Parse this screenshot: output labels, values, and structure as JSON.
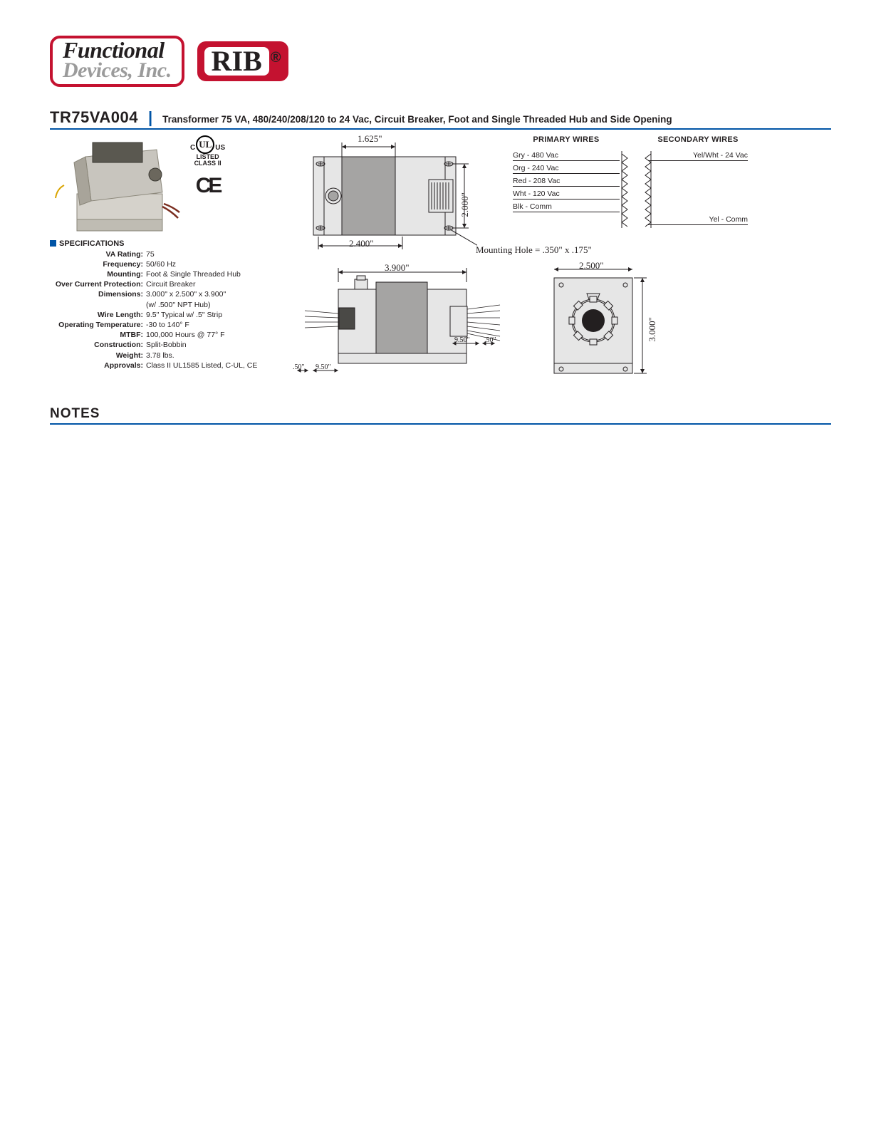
{
  "logos": {
    "fd_top": "Functional",
    "fd_bottom": "Devices, Inc.",
    "rib": "RIB",
    "reg": "®"
  },
  "header": {
    "part_number": "TR75VA004",
    "separator": "|",
    "description": "Transformer 75 VA, 480/240/208/120 to 24 Vac, Circuit Breaker, Foot and  Single Threaded Hub and Side Opening"
  },
  "certifications": {
    "ul_c": "C",
    "ul_text": "UL",
    "ul_us": "US",
    "ul_listed": "LISTED",
    "ul_class": "CLASS II",
    "ce": "CE"
  },
  "specs_heading": "SPECIFICATIONS",
  "specs": [
    {
      "label": "VA Rating:",
      "value": "75"
    },
    {
      "label": "Frequency:",
      "value": "50/60 Hz"
    },
    {
      "label": "Mounting:",
      "value": "Foot & Single Threaded Hub"
    },
    {
      "label": "Over Current Protection:",
      "value": "Circuit Breaker"
    },
    {
      "label": "Dimensions:",
      "value": "3.000\" x 2.500\" x 3.900\""
    },
    {
      "label": "",
      "value": "(w/ .500\" NPT Hub)"
    },
    {
      "label": "Wire Length:",
      "value": "9.5\" Typical w/ .5\" Strip"
    },
    {
      "label": "Operating Temperature:",
      "value": "-30 to 140° F"
    },
    {
      "label": "MTBF:",
      "value": "100,000 Hours @ 77° F"
    },
    {
      "label": "Construction:",
      "value": "Split-Bobbin"
    },
    {
      "label": "Weight:",
      "value": "3.78 lbs."
    },
    {
      "label": "Approvals:",
      "value": "Class II UL1585 Listed, C-UL, CE"
    }
  ],
  "drawing": {
    "top_view": {
      "dim_1625": "1.625\"",
      "dim_2000": "2.000\"",
      "dim_2400": "2.400\"",
      "fill": "#e6e6e6",
      "core_fill": "#a5a4a3",
      "stroke": "#231f20"
    },
    "mounting_hole": "Mounting Hole = .350\" x .175\"",
    "side_view": {
      "dim_3900": "3.900\"",
      "dim_950_l": "9.50\"",
      "dim_50_l": ".50\"",
      "dim_950_r": "9.50\"",
      "dim_50_r": ".50\""
    },
    "end_view": {
      "dim_2500": "2.500\"",
      "dim_3000": "3.000\""
    },
    "primary_header": "PRIMARY WIRES",
    "secondary_header": "SECONDARY WIRES",
    "primary_wires": [
      "Gry - 480 Vac",
      "Org - 240 Vac",
      "Red - 208 Vac",
      "Wht - 120 Vac",
      "Blk - Comm"
    ],
    "secondary_wires_top": "Yel/Wht - 24 Vac",
    "secondary_wires_bottom": "Yel - Comm"
  },
  "notes_heading": "NOTES",
  "colors": {
    "accent_blue": "#0054a6",
    "brand_red": "#c41230",
    "gray_text": "#9b9b9b",
    "drawing_bg": "#e6e6e6",
    "drawing_core": "#a5a4a3",
    "stroke": "#231f20"
  }
}
